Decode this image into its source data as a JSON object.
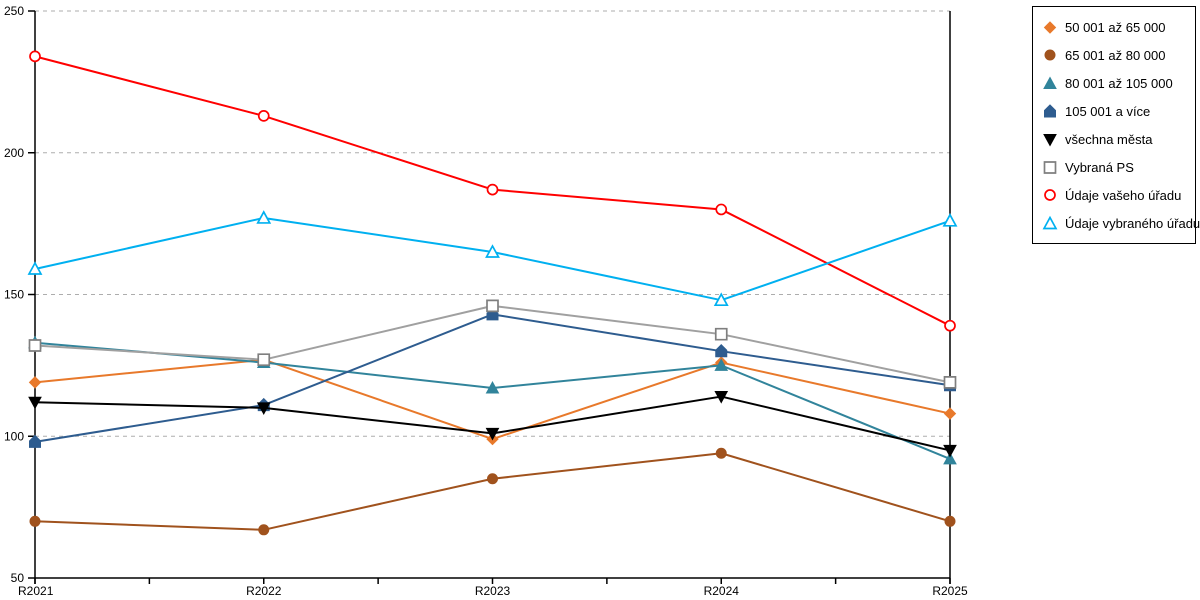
{
  "chart_data": {
    "type": "line",
    "title": "",
    "xlabel": "",
    "ylabel": "",
    "x_categories": [
      "R2021",
      "R2022",
      "R2023",
      "R2024",
      "R2025"
    ],
    "y_ticks": [
      50,
      100,
      150,
      200,
      250
    ],
    "ylim": [
      50,
      250
    ],
    "grid": "horizontal-dashed",
    "legend_position": "outside-top-right",
    "series": [
      {
        "name": "50 001 až 65 000",
        "color": "#E8792B",
        "marker": "diamond",
        "marker_style": "filled",
        "values": [
          119,
          127,
          99,
          126,
          108
        ]
      },
      {
        "name": "65 001 až 80 000",
        "color": "#A0521D",
        "marker": "circle",
        "marker_style": "filled",
        "values": [
          70,
          67,
          85,
          94,
          70
        ]
      },
      {
        "name": "80 001 až 105 000",
        "color": "#31849B",
        "marker": "triangle-up",
        "marker_style": "filled",
        "values": [
          133,
          126,
          117,
          125,
          92
        ]
      },
      {
        "name": "105 001 a více",
        "color": "#2E5C8F",
        "marker": "pentagon",
        "marker_style": "filled",
        "values": [
          98,
          111,
          143,
          130,
          118
        ]
      },
      {
        "name": "všechna města",
        "color": "#000000",
        "marker": "triangle-down",
        "marker_style": "filled",
        "values": [
          112,
          110,
          101,
          114,
          95
        ]
      },
      {
        "name": "Vybraná PS",
        "color": "#A0A0A0",
        "marker": "square",
        "marker_style": "open",
        "marker_color": "#7F7F7F",
        "values": [
          132,
          127,
          146,
          136,
          119
        ]
      },
      {
        "name": "Údaje vašeho úřadu",
        "color": "#FF0000",
        "marker": "circle",
        "marker_style": "open",
        "values": [
          234,
          213,
          187,
          180,
          139
        ]
      },
      {
        "name": "Údaje vybraného úřadu",
        "color": "#00B0F0",
        "marker": "triangle-up",
        "marker_style": "open",
        "values": [
          159,
          177,
          165,
          148,
          176
        ]
      }
    ],
    "axis_color": "#000000",
    "gridline_color": "#ADADAD",
    "background_color": "#FFFFFF"
  }
}
